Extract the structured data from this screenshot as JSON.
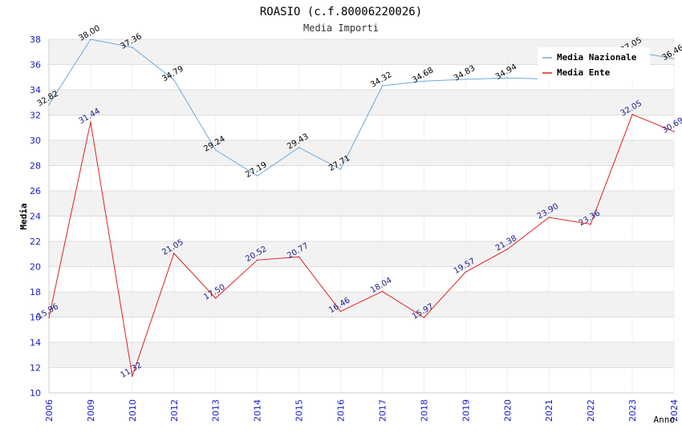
{
  "chart_data": {
    "type": "line",
    "title": "ROASIO (c.f.80006220026)",
    "subtitle": "Media Importi",
    "ylabel": "Media",
    "xlabel": "Anno",
    "ylim": [
      10,
      38
    ],
    "yticks": [
      "10",
      "12",
      "14",
      "16",
      "18",
      "20",
      "22",
      "24",
      "26",
      "28",
      "30",
      "32",
      "34",
      "36",
      "38"
    ],
    "categories": [
      "2006",
      "2009",
      "2010",
      "2012",
      "2013",
      "2014",
      "2015",
      "2016",
      "2017",
      "2018",
      "2019",
      "2020",
      "2021",
      "2022",
      "2023",
      "2024"
    ],
    "series": [
      {
        "name": "Media Nazionale",
        "color": "#6fa8dc",
        "values": [
          32.82,
          38.0,
          37.36,
          34.79,
          29.24,
          27.19,
          29.43,
          27.71,
          34.32,
          34.68,
          34.83,
          34.94,
          34.85,
          34.88,
          37.05,
          36.46
        ],
        "labels": [
          "32.82",
          "38.00",
          "37.36",
          "34.79",
          "29.24",
          "27.19",
          "29.43",
          "27.71",
          "34.32",
          "34.68",
          "34.83",
          "34.94",
          null,
          null,
          "37.05",
          "36.46"
        ]
      },
      {
        "name": "Media Ente",
        "color": "#e02020",
        "values": [
          15.96,
          31.44,
          11.32,
          21.05,
          17.5,
          20.52,
          20.77,
          16.46,
          18.04,
          15.97,
          19.57,
          21.38,
          23.9,
          23.36,
          32.05,
          30.69
        ],
        "labels": [
          "15.96",
          "31.44",
          "11.32",
          "21.05",
          "17.50",
          "20.52",
          "20.77",
          "16.46",
          "18.04",
          "15.97",
          "19.57",
          "21.38",
          "23.90",
          "23.36",
          "32.05",
          "30.69"
        ]
      }
    ],
    "grid": true,
    "legend_position": "top-right"
  }
}
